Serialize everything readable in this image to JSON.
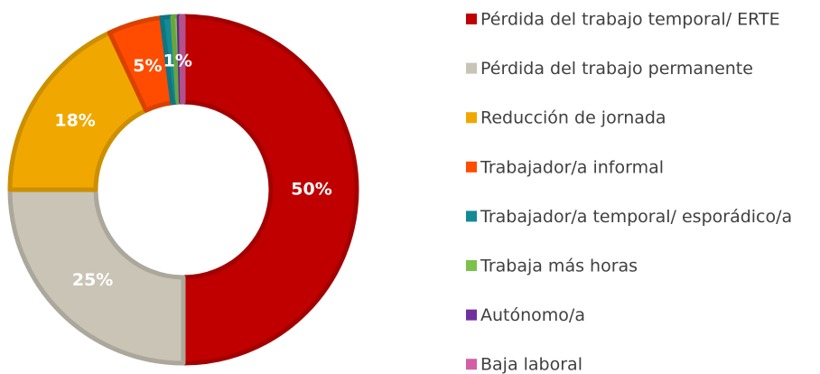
{
  "chart_data": {
    "type": "pie",
    "donut": true,
    "categories": [
      "Pérdida del trabajo temporal/ ERTE",
      "Pérdida del trabajo permanente",
      "Reducción de jornada",
      "Trabajador/a informal",
      "Trabajador/a temporal/ esporádico/a",
      "Trabaja más horas",
      "Autónomo/a",
      "Baja laboral"
    ],
    "values": [
      50,
      25,
      18,
      5,
      1,
      0.6,
      0.2,
      0.2
    ],
    "value_labels": [
      "50%",
      "25%",
      "18%",
      "5%",
      null,
      "1%",
      null,
      null
    ],
    "colors": [
      "#c00000",
      "#c9c4b6",
      "#f0a800",
      "#ff4c00",
      "#138a96",
      "#7cc24a",
      "#7030a0",
      "#d45fa6"
    ],
    "legend": "right"
  }
}
